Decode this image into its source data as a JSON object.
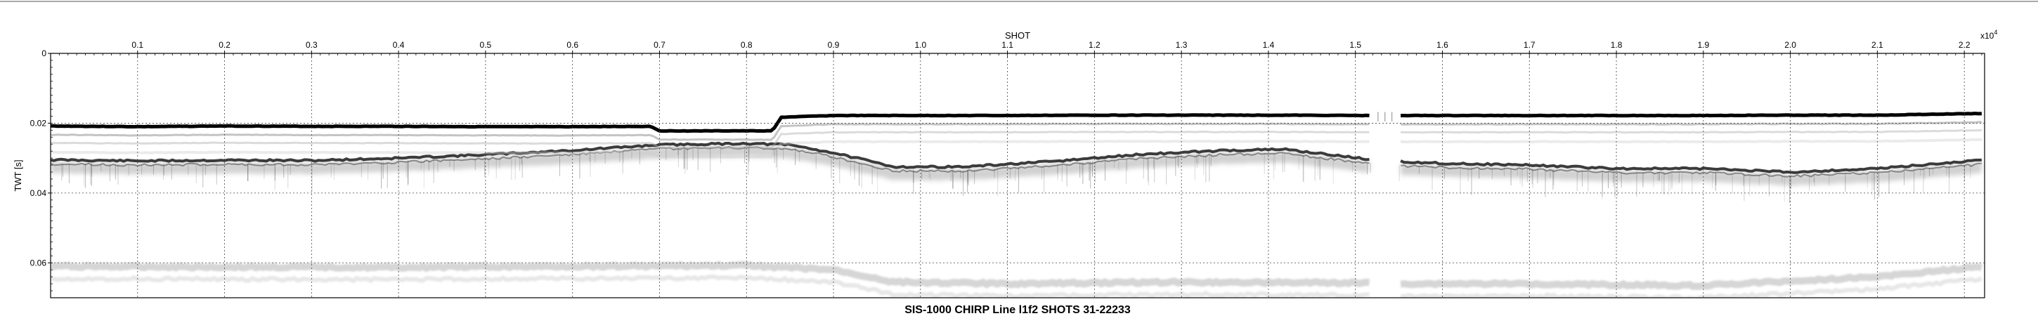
{
  "chart_data": {
    "type": "heatmap",
    "title": "SIS-1000 CHIRP Line l1f2 SHOTS 31-22233",
    "xlabel": "SHOT",
    "x_multiplier": "x10",
    "x_multiplier_exp": "4",
    "ylabel": "TWT [s]",
    "xlim": [
      0.0,
      2.2233
    ],
    "ylim": [
      0.0,
      0.07
    ],
    "y_inverted": true,
    "grid": true,
    "colormap": "gray (white = low, black = high amplitude)",
    "xticks": [
      0.1,
      0.2,
      0.3,
      0.4,
      0.5,
      0.6,
      0.7,
      0.8,
      0.9,
      1.0,
      1.1,
      1.2,
      1.3,
      1.4,
      1.5,
      1.6,
      1.7,
      1.8,
      1.9,
      2.0,
      2.1,
      2.2
    ],
    "xtick_labels": [
      "0.1",
      "0.2",
      "0.3",
      "0.4",
      "0.5",
      "0.6",
      "0.7",
      "0.8",
      "0.9",
      "1.0",
      "1.1",
      "1.2",
      "1.3",
      "1.4",
      "1.5",
      "1.6",
      "1.7",
      "1.8",
      "1.9",
      "2.0",
      "2.1",
      "2.2"
    ],
    "yticks": [
      0,
      0.02,
      0.04,
      0.06
    ],
    "ytick_labels": [
      "0",
      "0.02",
      "0.04",
      "0.06"
    ],
    "data_gap": [
      1.52,
      1.55
    ],
    "seafloor_reflector": {
      "x": [
        0.0,
        0.1,
        0.2,
        0.3,
        0.4,
        0.5,
        0.6,
        0.69,
        0.7,
        0.8,
        0.83,
        0.84,
        0.9,
        1.0,
        1.1,
        1.2,
        1.3,
        1.4,
        1.52,
        1.55,
        1.6,
        1.7,
        1.8,
        1.9,
        2.0,
        2.1,
        2.2233
      ],
      "twt": [
        0.0208,
        0.021,
        0.0208,
        0.0209,
        0.0209,
        0.021,
        0.021,
        0.0209,
        0.0222,
        0.0222,
        0.0222,
        0.0183,
        0.0178,
        0.0178,
        0.0178,
        0.0177,
        0.0177,
        0.0177,
        0.0178,
        0.0178,
        0.0178,
        0.0178,
        0.0178,
        0.0178,
        0.0177,
        0.0177,
        0.0172
      ]
    },
    "subbottom_reflector": {
      "x": [
        0.0,
        0.1,
        0.2,
        0.3,
        0.4,
        0.5,
        0.6,
        0.7,
        0.8,
        0.85,
        0.9,
        0.97,
        1.05,
        1.15,
        1.25,
        1.35,
        1.42,
        1.52,
        1.55,
        1.6,
        1.7,
        1.8,
        1.9,
        2.0,
        2.1,
        2.2233
      ],
      "twt": [
        0.0305,
        0.0308,
        0.0306,
        0.0307,
        0.03,
        0.029,
        0.0278,
        0.0262,
        0.0258,
        0.0262,
        0.0285,
        0.0325,
        0.0325,
        0.031,
        0.029,
        0.0278,
        0.0275,
        0.0305,
        0.031,
        0.0315,
        0.032,
        0.033,
        0.033,
        0.034,
        0.033,
        0.0305
      ]
    },
    "deep_reflector": {
      "x": [
        0.0,
        0.2,
        0.4,
        0.6,
        0.8,
        0.9,
        0.97,
        1.1,
        1.3,
        1.52,
        1.55,
        1.7,
        1.9,
        2.1,
        2.2233
      ],
      "twt": [
        0.061,
        0.0612,
        0.0613,
        0.061,
        0.0608,
        0.062,
        0.0655,
        0.066,
        0.0655,
        0.0658,
        0.066,
        0.066,
        0.0665,
        0.064,
        0.061
      ]
    }
  }
}
